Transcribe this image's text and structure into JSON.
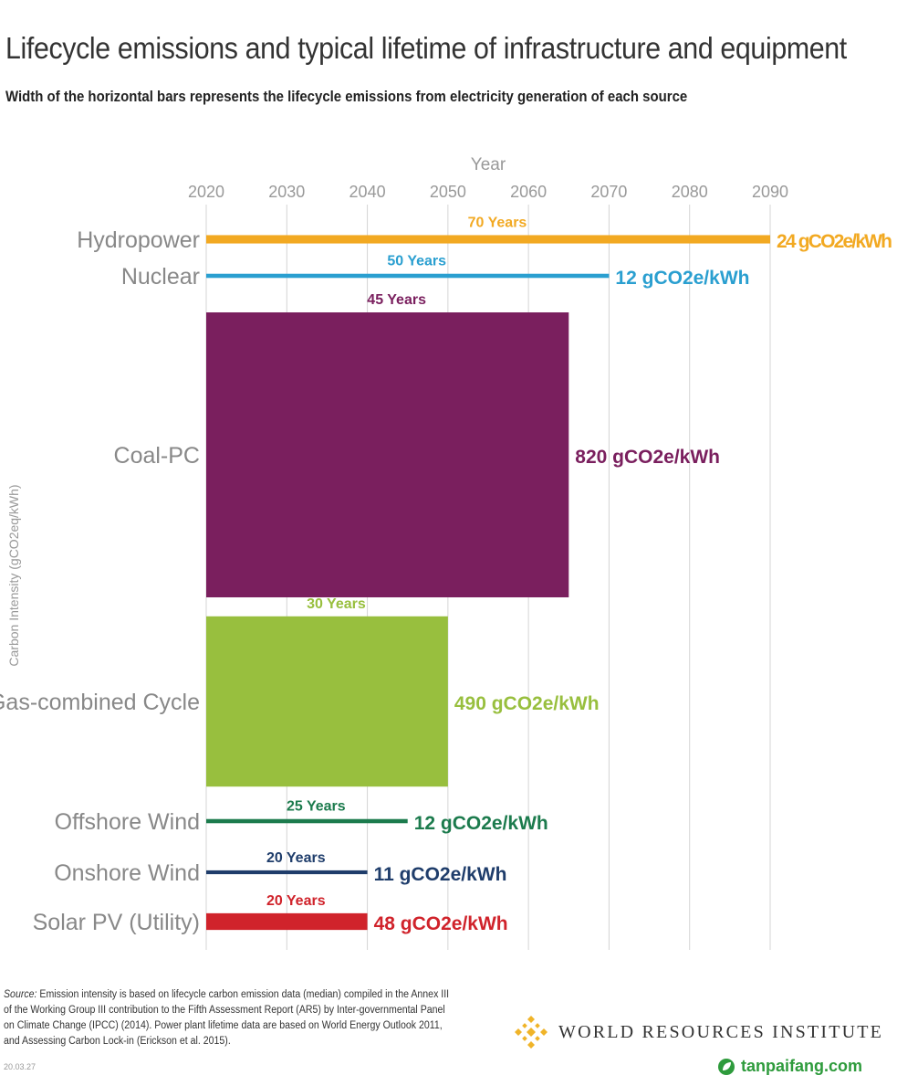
{
  "title": "Lifecycle emissions and typical lifetime of infrastructure and equipment",
  "subtitle": "Width of the horizontal bars represents the lifecycle emissions from electricity generation of each source",
  "footer": {
    "source_label": "Source:",
    "source_text": "Emission intensity is based on lifecycle carbon emission data (median) compiled in the Annex III of the Working Group III contribution to the Fifth Assessment Report (AR5) by Inter-governmental Panel on Climate Change (IPCC) (2014). Power plant lifetime data are based on World Energy Outlook 2011, and Assessing Carbon Lock-in (Erickson et al. 2015).",
    "date_code": "20.03.27"
  },
  "logo": {
    "name": "WORLD RESOURCES INSTITUTE",
    "icon": "wri-diamond-logo-icon",
    "color": "#f0b429"
  },
  "watermark": {
    "text": "tanpaifang.com",
    "icon": "tanpaifang-leaf-icon",
    "color": "#2e9b3c"
  },
  "chart_data": {
    "type": "bar",
    "orientation": "horizontal",
    "xlabel": "Year",
    "ylabel": "Carbon Intensity (gCO2eq/kWh)",
    "x_axis_position": "top",
    "xlim": [
      2020,
      2090
    ],
    "xticks": [
      2020,
      2030,
      2040,
      2050,
      2060,
      2070,
      2080,
      2090
    ],
    "grid": "vertical",
    "start_year": 2020,
    "categories": [
      "Hydropower",
      "Nuclear",
      "Coal-PC",
      "Gas-combined Cycle",
      "Offshore Wind",
      "Onshore Wind",
      "Solar PV (Utility)"
    ],
    "series": [
      {
        "category": "Hydropower",
        "lifetime_years": 70,
        "lifetime_label": "70 Years",
        "emissions": 24,
        "emissions_label": "24 gCO2e/kWh",
        "color": "#f2a922"
      },
      {
        "category": "Nuclear",
        "lifetime_years": 50,
        "lifetime_label": "50 Years",
        "emissions": 12,
        "emissions_label": "12 gCO2e/kWh",
        "color": "#2a9fd0"
      },
      {
        "category": "Coal-PC",
        "lifetime_years": 45,
        "lifetime_label": "45 Years",
        "emissions": 820,
        "emissions_label": "820 gCO2e/kWh",
        "color": "#7a1f5e"
      },
      {
        "category": "Gas-combined Cycle",
        "lifetime_years": 30,
        "lifetime_label": "30 Years",
        "emissions": 490,
        "emissions_label": "490 gCO2e/kWh",
        "color": "#98bf3e"
      },
      {
        "category": "Offshore Wind",
        "lifetime_years": 25,
        "lifetime_label": "25 Years",
        "emissions": 12,
        "emissions_label": "12 gCO2e/kWh",
        "color": "#1c7b4d"
      },
      {
        "category": "Onshore Wind",
        "lifetime_years": 20,
        "lifetime_label": "20 Years",
        "emissions": 11,
        "emissions_label": "11 gCO2e/kWh",
        "color": "#1f3d6b"
      },
      {
        "category": "Solar PV (Utility)",
        "lifetime_years": 20,
        "lifetime_label": "20 Years",
        "emissions": 48,
        "emissions_label": "48 gCO2e/kWh",
        "color": "#d0232b"
      }
    ]
  }
}
